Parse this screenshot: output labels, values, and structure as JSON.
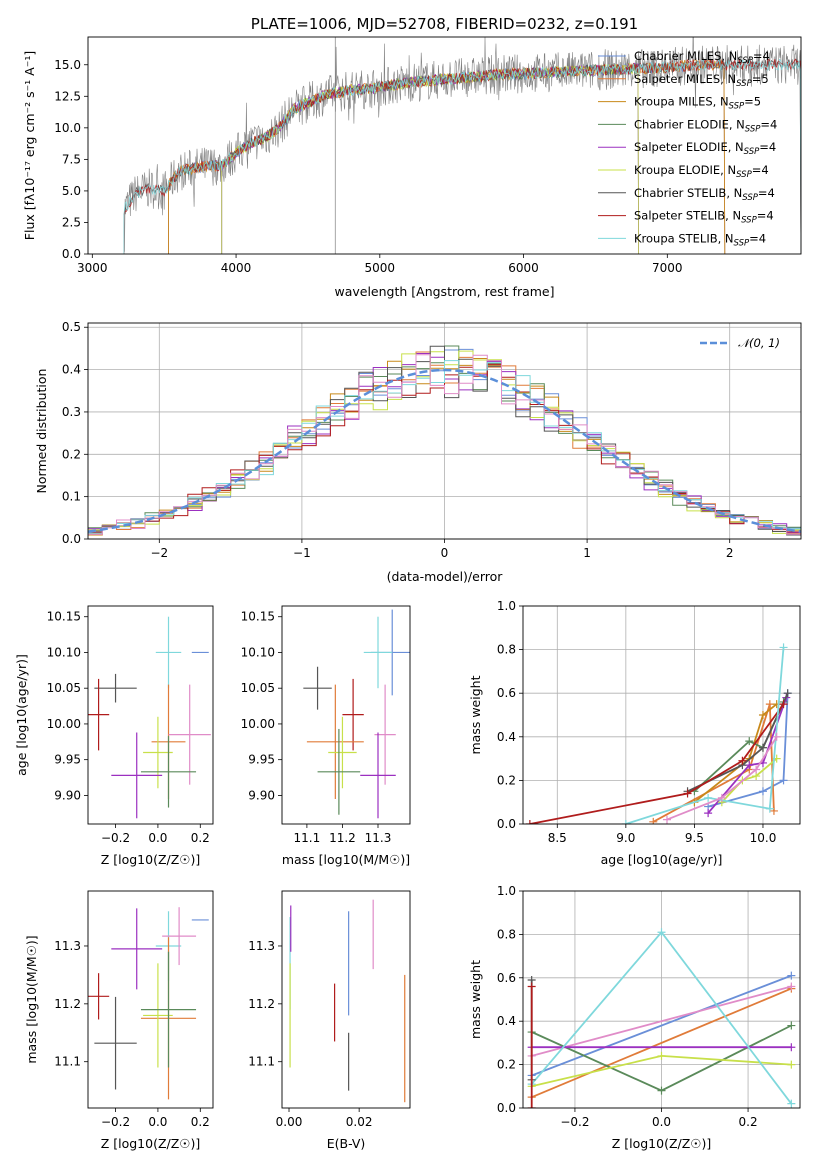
{
  "chart_data": [
    {
      "type": "line",
      "title": "PLATE=1006, MJD=52708, FIBERID=0232, z=0.191",
      "xlabel": "wavelength [Angstrom, rest frame]",
      "ylabel": "Flux [fλ10⁻¹⁷ erg cm⁻² s⁻¹ A⁻¹]",
      "xlim": [
        2970,
        7930
      ],
      "ylim": [
        0,
        17.2
      ],
      "xticks": [
        3000,
        4000,
        5000,
        6000,
        7000
      ],
      "yticks": [
        0.0,
        2.5,
        5.0,
        7.5,
        10.0,
        12.5,
        15.0
      ],
      "legend_position": "right",
      "spectrum_trend": {
        "x": [
          3220,
          3300,
          3400,
          3500,
          3600,
          3700,
          3800,
          3900,
          4000,
          4100,
          4200,
          4300,
          4400,
          4500,
          4600,
          4700,
          4800,
          5000,
          5200,
          5400,
          5600,
          5800,
          6000,
          6200,
          6400,
          6600,
          6800,
          7000,
          7200,
          7400,
          7600,
          7800
        ],
        "y": [
          3.5,
          4.8,
          5.2,
          5.0,
          6.5,
          6.8,
          7.0,
          7.0,
          8.0,
          8.8,
          9.2,
          10.0,
          11.5,
          12.0,
          12.5,
          12.8,
          13.0,
          13.2,
          13.6,
          13.8,
          14.0,
          14.2,
          14.3,
          14.4,
          14.5,
          14.6,
          14.7,
          14.8,
          15.0,
          15.0,
          15.0,
          15.0
        ]
      },
      "series": [
        {
          "name": "Chabrier MILES, N_SSP=4",
          "color": "#6a8fd8",
          "start": 3530,
          "end": 7400
        },
        {
          "name": "Salpeter MILES, N_SSP=5",
          "color": "#e07b39",
          "start": 3530,
          "end": 7400
        },
        {
          "name": "Kroupa MILES, N_SSP=5",
          "color": "#c8891a",
          "start": 3530,
          "end": 7400
        },
        {
          "name": "Chabrier ELODIE, N_SSP=4",
          "color": "#5a8a5a",
          "start": 3900,
          "end": 6800
        },
        {
          "name": "Salpeter ELODIE, N_SSP=4",
          "color": "#9b30c0",
          "start": 3900,
          "end": 6800
        },
        {
          "name": "Kroupa ELODIE, N_SSP=4",
          "color": "#c8e04a",
          "start": 3900,
          "end": 6800
        },
        {
          "name": "Chabrier STELIB, N_SSP=4",
          "color": "#555555",
          "start": 3220,
          "end": 7930
        },
        {
          "name": "Salpeter STELIB, N_SSP=4",
          "color": "#b01c1c",
          "start": 3220,
          "end": 7930
        },
        {
          "name": "Kroupa STELIB, N_SSP=4",
          "color": "#7fd8dc",
          "start": 3220,
          "end": 7930
        }
      ],
      "legend": [
        {
          "main": "Chabrier MILES, N",
          "sub": "SSP",
          "tail": "=4"
        },
        {
          "main": "Salpeter MILES, N",
          "sub": "SSP",
          "tail": "=5"
        },
        {
          "main": "Kroupa MILES, N",
          "sub": "SSP",
          "tail": "=5"
        },
        {
          "main": "Chabrier ELODIE, N",
          "sub": "SSP",
          "tail": "=4"
        },
        {
          "main": "Salpeter ELODIE, N",
          "sub": "SSP",
          "tail": "=4"
        },
        {
          "main": "Kroupa ELODIE, N",
          "sub": "SSP",
          "tail": "=4"
        },
        {
          "main": "Chabrier STELIB, N",
          "sub": "SSP",
          "tail": "=4"
        },
        {
          "main": "Salpeter STELIB, N",
          "sub": "SSP",
          "tail": "=4"
        },
        {
          "main": "Kroupa STELIB, N",
          "sub": "SSP",
          "tail": "=4"
        }
      ]
    },
    {
      "type": "area",
      "xlabel": "(data-model)/error",
      "ylabel": "Normed distribution",
      "xlim": [
        -2.5,
        2.5
      ],
      "ylim": [
        0,
        0.51
      ],
      "xticks": [
        -2,
        -1,
        0,
        1,
        2
      ],
      "yticks": [
        0.0,
        0.1,
        0.2,
        0.3,
        0.4,
        0.5
      ],
      "grid": true,
      "legend_position": "upper right",
      "reference_curve": {
        "label": "𝒩(0, 1)",
        "color": "#5b8fd9",
        "mean": 0,
        "sigma": 1
      },
      "histogram_bin_width": 0.1,
      "histogram_series_colors": [
        "#6a8fd8",
        "#e07b39",
        "#c8891a",
        "#5a8a5a",
        "#9b30c0",
        "#c8e04a",
        "#555555",
        "#b01c1c",
        "#7fd8dc",
        "#e08cc8"
      ]
    },
    {
      "type": "scatter",
      "xlabel": "Z [log10(Z/Z☉)]",
      "ylabel": "age  [log10(age/yr)]",
      "xlim": [
        -0.33,
        0.26
      ],
      "ylim": [
        9.86,
        10.165
      ],
      "xticks": [
        -0.2,
        0.0,
        0.2
      ],
      "yticks": [
        9.9,
        9.95,
        10.0,
        10.05,
        10.1,
        10.15
      ],
      "points": [
        {
          "x": 0.2,
          "y": 10.1,
          "dx": 0.04,
          "dy": 0.0,
          "color": "#6a8fd8"
        },
        {
          "x": 0.05,
          "y": 10.1,
          "dx": 0.06,
          "dy": 0.05,
          "color": "#7fd8dc"
        },
        {
          "x": -0.2,
          "y": 10.05,
          "dx": 0.1,
          "dy": 0.02,
          "color": "#555555"
        },
        {
          "x": -0.28,
          "y": 10.013,
          "dx": 0.05,
          "dy": 0.05,
          "color": "#b01c1c"
        },
        {
          "x": 0.05,
          "y": 9.975,
          "dx": 0.08,
          "dy": 0.08,
          "color": "#e07b39"
        },
        {
          "x": 0.15,
          "y": 9.985,
          "dx": 0.1,
          "dy": 0.07,
          "color": "#e08cc8"
        },
        {
          "x": 0.0,
          "y": 9.96,
          "dx": 0.07,
          "dy": 0.05,
          "color": "#c8e04a"
        },
        {
          "x": 0.05,
          "y": 9.933,
          "dx": 0.13,
          "dy": 0.05,
          "color": "#5a8a5a"
        },
        {
          "x": -0.1,
          "y": 9.928,
          "dx": 0.12,
          "dy": 0.06,
          "color": "#9b30c0"
        }
      ]
    },
    {
      "type": "scatter",
      "xlabel": "mass [log10(M/M☉)]",
      "xlim": [
        11.03,
        11.39
      ],
      "ylim": [
        9.86,
        10.165
      ],
      "xticks": [
        11.1,
        11.2,
        11.3
      ],
      "yticks": [
        9.9,
        9.95,
        10.0,
        10.05,
        10.1,
        10.15
      ],
      "points": [
        {
          "x": 11.34,
          "y": 10.1,
          "dx": 0.06,
          "dy": 0.06,
          "color": "#6a8fd8"
        },
        {
          "x": 11.3,
          "y": 10.1,
          "dx": 0.04,
          "dy": 0.05,
          "color": "#7fd8dc"
        },
        {
          "x": 11.13,
          "y": 10.05,
          "dx": 0.04,
          "dy": 0.03,
          "color": "#555555"
        },
        {
          "x": 11.23,
          "y": 10.013,
          "dx": 0.03,
          "dy": 0.05,
          "color": "#b01c1c"
        },
        {
          "x": 11.18,
          "y": 9.975,
          "dx": 0.08,
          "dy": 0.08,
          "color": "#e07b39"
        },
        {
          "x": 11.32,
          "y": 9.985,
          "dx": 0.03,
          "dy": 0.07,
          "color": "#e08cc8"
        },
        {
          "x": 11.2,
          "y": 9.96,
          "dx": 0.04,
          "dy": 0.05,
          "color": "#c8e04a"
        },
        {
          "x": 11.19,
          "y": 9.933,
          "dx": 0.06,
          "dy": 0.06,
          "color": "#5a8a5a"
        },
        {
          "x": 11.3,
          "y": 9.928,
          "dx": 0.05,
          "dy": 0.06,
          "color": "#9b30c0"
        }
      ]
    },
    {
      "type": "line",
      "xlabel": "age  [log10(age/yr)]",
      "ylabel": "mass weight",
      "xlim": [
        8.25,
        10.27
      ],
      "ylim": [
        0,
        1.0
      ],
      "xticks": [
        8.5,
        9.0,
        9.5,
        10.0
      ],
      "yticks": [
        0.0,
        0.2,
        0.4,
        0.6,
        0.8,
        1.0
      ],
      "grid": true,
      "series": [
        {
          "name": "",
          "color": "#6a8fd8",
          "x": [
            9.6,
            10.0,
            10.15,
            10.18
          ],
          "y": [
            0.08,
            0.15,
            0.2,
            0.6
          ]
        },
        {
          "name": "",
          "color": "#e07b39",
          "x": [
            9.2,
            9.9,
            10.05,
            10.08
          ],
          "y": [
            0.01,
            0.25,
            0.55,
            0.06
          ]
        },
        {
          "name": "",
          "color": "#c8891a",
          "x": [
            9.5,
            9.9,
            10.0,
            10.1
          ],
          "y": [
            0.1,
            0.3,
            0.5,
            0.55
          ]
        },
        {
          "name": "",
          "color": "#5a8a5a",
          "x": [
            9.5,
            9.9,
            10.0,
            10.15
          ],
          "y": [
            0.15,
            0.38,
            0.35,
            0.56
          ]
        },
        {
          "name": "",
          "color": "#9b30c0",
          "x": [
            9.6,
            9.9,
            10.0,
            10.17
          ],
          "y": [
            0.05,
            0.27,
            0.28,
            0.58
          ]
        },
        {
          "name": "",
          "color": "#c8e04a",
          "x": [
            9.7,
            9.85,
            9.95,
            10.1
          ],
          "y": [
            0.1,
            0.2,
            0.22,
            0.3
          ]
        },
        {
          "name": "",
          "color": "#555555",
          "x": [
            9.45,
            9.85,
            10.0,
            10.18
          ],
          "y": [
            0.15,
            0.27,
            0.35,
            0.6
          ]
        },
        {
          "name": "",
          "color": "#b01c1c",
          "x": [
            8.3,
            9.45,
            9.85,
            10.15
          ],
          "y": [
            0.0,
            0.14,
            0.29,
            0.55
          ]
        },
        {
          "name": "",
          "color": "#7fd8dc",
          "x": [
            9.0,
            9.6,
            10.05,
            10.15
          ],
          "y": [
            0.0,
            0.12,
            0.07,
            0.81
          ]
        },
        {
          "name": "",
          "color": "#e08cc8",
          "x": [
            9.3,
            9.7,
            9.95,
            10.1
          ],
          "y": [
            0.02,
            0.12,
            0.25,
            0.4
          ]
        }
      ]
    },
    {
      "type": "scatter",
      "xlabel": "Z [log10(Z/Z☉)]",
      "ylabel": "mass [log10(M/M☉)]",
      "xlim": [
        -0.33,
        0.26
      ],
      "ylim": [
        11.02,
        11.395
      ],
      "xticks": [
        -0.2,
        0.0,
        0.2
      ],
      "yticks": [
        11.1,
        11.2,
        11.3
      ],
      "points": [
        {
          "x": 0.2,
          "y": 11.345,
          "dx": 0.04,
          "dy": 0.0,
          "color": "#6a8fd8"
        },
        {
          "x": 0.05,
          "y": 11.3,
          "dx": 0.06,
          "dy": 0.06,
          "color": "#7fd8dc"
        },
        {
          "x": -0.2,
          "y": 11.132,
          "dx": 0.1,
          "dy": 0.08,
          "color": "#555555"
        },
        {
          "x": -0.28,
          "y": 11.213,
          "dx": 0.05,
          "dy": 0.04,
          "color": "#b01c1c"
        },
        {
          "x": 0.05,
          "y": 11.175,
          "dx": 0.13,
          "dy": 0.14,
          "color": "#e07b39"
        },
        {
          "x": 0.1,
          "y": 11.317,
          "dx": 0.08,
          "dy": 0.05,
          "color": "#e08cc8"
        },
        {
          "x": 0.0,
          "y": 11.18,
          "dx": 0.07,
          "dy": 0.09,
          "color": "#c8e04a"
        },
        {
          "x": 0.05,
          "y": 11.19,
          "dx": 0.13,
          "dy": 0.1,
          "color": "#5a8a5a"
        },
        {
          "x": -0.1,
          "y": 11.295,
          "dx": 0.12,
          "dy": 0.07,
          "color": "#9b30c0"
        }
      ]
    },
    {
      "type": "scatter",
      "xlabel": "E(B-V)",
      "xlim": [
        -0.002,
        0.0345
      ],
      "ylim": [
        11.02,
        11.395
      ],
      "xticks": [
        0.0,
        0.02
      ],
      "yticks": [
        11.1,
        11.2,
        11.3
      ],
      "points": [
        {
          "x": 0.017,
          "y": 11.27,
          "dx": 0.0,
          "dy": 0.09,
          "color": "#6a8fd8"
        },
        {
          "x": 0.0003,
          "y": 11.27,
          "dx": 0.0,
          "dy": 0.08,
          "color": "#7fd8dc"
        },
        {
          "x": 0.017,
          "y": 11.1,
          "dx": 0.0,
          "dy": 0.05,
          "color": "#555555"
        },
        {
          "x": 0.013,
          "y": 11.185,
          "dx": 0.0,
          "dy": 0.05,
          "color": "#b01c1c"
        },
        {
          "x": 0.033,
          "y": 11.14,
          "dx": 0.0,
          "dy": 0.11,
          "color": "#e07b39"
        },
        {
          "x": 0.024,
          "y": 11.32,
          "dx": 0.0,
          "dy": 0.06,
          "color": "#e08cc8"
        },
        {
          "x": 0.0003,
          "y": 11.18,
          "dx": 0.0,
          "dy": 0.09,
          "color": "#c8e04a"
        },
        {
          "x": 0.0005,
          "y": 11.33,
          "dx": 0.0,
          "dy": 0.04,
          "color": "#9b30c0"
        }
      ]
    },
    {
      "type": "line",
      "xlabel": "Z [log10(Z/Z☉)]",
      "ylabel": "mass weight",
      "xlim": [
        -0.32,
        0.32
      ],
      "ylim": [
        0,
        1.0
      ],
      "xticks": [
        -0.2,
        0.0,
        0.2
      ],
      "yticks": [
        0.0,
        0.2,
        0.4,
        0.6,
        0.8,
        1.0
      ],
      "grid": true,
      "series": [
        {
          "name": "",
          "color": "#6a8fd8",
          "x": [
            -0.3,
            0.3
          ],
          "y": [
            0.15,
            0.61
          ]
        },
        {
          "name": "",
          "color": "#e07b39",
          "x": [
            -0.3,
            0.3
          ],
          "y": [
            0.05,
            0.55
          ]
        },
        {
          "name": "",
          "color": "#e08cc8",
          "x": [
            -0.3,
            0.3
          ],
          "y": [
            0.24,
            0.56
          ]
        },
        {
          "name": "",
          "color": "#5a8a5a",
          "x": [
            -0.3,
            0.0,
            0.3
          ],
          "y": [
            0.35,
            0.08,
            0.38
          ]
        },
        {
          "name": "",
          "color": "#9b30c0",
          "x": [
            -0.3,
            0.3
          ],
          "y": [
            0.28,
            0.28
          ]
        },
        {
          "name": "",
          "color": "#c8e04a",
          "x": [
            -0.3,
            0.0,
            0.3
          ],
          "y": [
            0.1,
            0.24,
            0.2
          ]
        },
        {
          "name": "",
          "color": "#7fd8dc",
          "x": [
            -0.3,
            0.0,
            0.3
          ],
          "y": [
            0.11,
            0.81,
            0.02
          ]
        },
        {
          "name": "",
          "color": "#555555",
          "x": [
            -0.3,
            -0.3
          ],
          "y": [
            0.13,
            0.59
          ]
        },
        {
          "name": "",
          "color": "#b01c1c",
          "x": [
            -0.3,
            -0.3
          ],
          "y": [
            0.0,
            0.56
          ]
        }
      ]
    }
  ]
}
